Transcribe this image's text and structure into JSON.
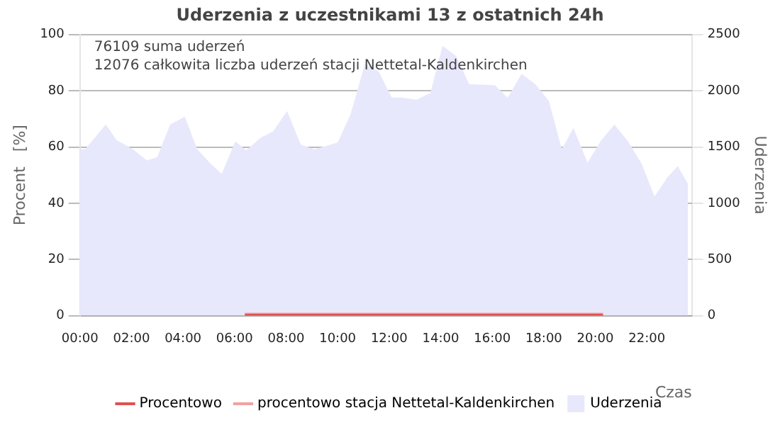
{
  "chart_data": {
    "type": "line",
    "title": "Uderzenia z uczestnikami 13 z ostatnich 24h",
    "xlabel": "Czas",
    "ylabel": "Procent   [%]",
    "y2label": "Uderzenia",
    "annotations": [
      "76109 suma uderzeń",
      "12076 całkowita liczba uderzeń stacji Nettetal-Kaldenkirchen"
    ],
    "xlim": [
      0,
      23.75
    ],
    "xticks": [
      {
        "value": 0,
        "label": "00:00"
      },
      {
        "value": 2,
        "label": "02:00"
      },
      {
        "value": 4,
        "label": "04:00"
      },
      {
        "value": 6,
        "label": "06:00"
      },
      {
        "value": 8,
        "label": "08:00"
      },
      {
        "value": 10,
        "label": "10:00"
      },
      {
        "value": 12,
        "label": "12:00"
      },
      {
        "value": 14,
        "label": "14:00"
      },
      {
        "value": 16,
        "label": "16:00"
      },
      {
        "value": 18,
        "label": "18:00"
      },
      {
        "value": 20,
        "label": "20:00"
      },
      {
        "value": 22,
        "label": "22:00"
      }
    ],
    "ylim": [
      0,
      100
    ],
    "yticks": [
      0,
      20,
      40,
      60,
      80,
      100
    ],
    "y2lim": [
      0,
      2500
    ],
    "y2ticks": [
      0,
      500,
      1000,
      1500,
      2000,
      2500
    ],
    "grid": "y",
    "legend": "bottom",
    "marker": "none",
    "series": [
      {
        "name": "Procentowo",
        "axis": "y",
        "color": "#e05050",
        "x": [
          6.4,
          6.9,
          7.4,
          7.9,
          11.9,
          12.3,
          14.0,
          15.9,
          17.4,
          17.8,
          19.9,
          20.3
        ],
        "values": [
          0.3,
          0.3,
          0.3,
          0.3,
          0.3,
          0.3,
          0.3,
          0.3,
          0.3,
          0.3,
          0.3,
          0.3
        ]
      },
      {
        "name": "procentowo stacja Nettetal-Kaldenkirchen",
        "axis": "y",
        "color": "#f4a0a0",
        "x": [
          6.4,
          6.9,
          7.4,
          7.9,
          11.9,
          12.3,
          14.0,
          15.9,
          17.4,
          17.8,
          19.9,
          20.3
        ],
        "values": [
          0.3,
          0.3,
          0.3,
          0.3,
          0.3,
          0.3,
          0.3,
          0.3,
          0.3,
          0.3,
          0.3,
          0.3
        ]
      },
      {
        "name": "Uderzenia",
        "type": "area",
        "axis": "y2",
        "color": "#e8e8fc",
        "x": [
          0,
          0.2,
          1.0,
          1.43,
          2.06,
          2.6,
          3.0,
          3.5,
          4.07,
          4.55,
          5.08,
          5.5,
          6.03,
          6.45,
          7.0,
          7.5,
          8.04,
          8.57,
          9.1,
          10.0,
          10.5,
          11.06,
          11.6,
          12.1,
          12.5,
          13.07,
          13.6,
          14.07,
          14.6,
          15.1,
          16.1,
          16.6,
          17.14,
          17.67,
          18.2,
          18.7,
          19.15,
          19.7,
          20.2,
          20.74,
          21.27,
          21.8,
          22.3,
          22.8,
          23.2,
          23.6
        ],
        "values": [
          1480,
          1480,
          1700,
          1560,
          1480,
          1380,
          1410,
          1700,
          1770,
          1480,
          1350,
          1260,
          1550,
          1470,
          1580,
          1640,
          1820,
          1520,
          1480,
          1540,
          1790,
          2240,
          2170,
          1940,
          1940,
          1920,
          1980,
          2400,
          2310,
          2060,
          2050,
          1940,
          2150,
          2060,
          1910,
          1480,
          1670,
          1360,
          1550,
          1700,
          1550,
          1350,
          1060,
          1230,
          1330,
          1170
        ]
      }
    ]
  }
}
